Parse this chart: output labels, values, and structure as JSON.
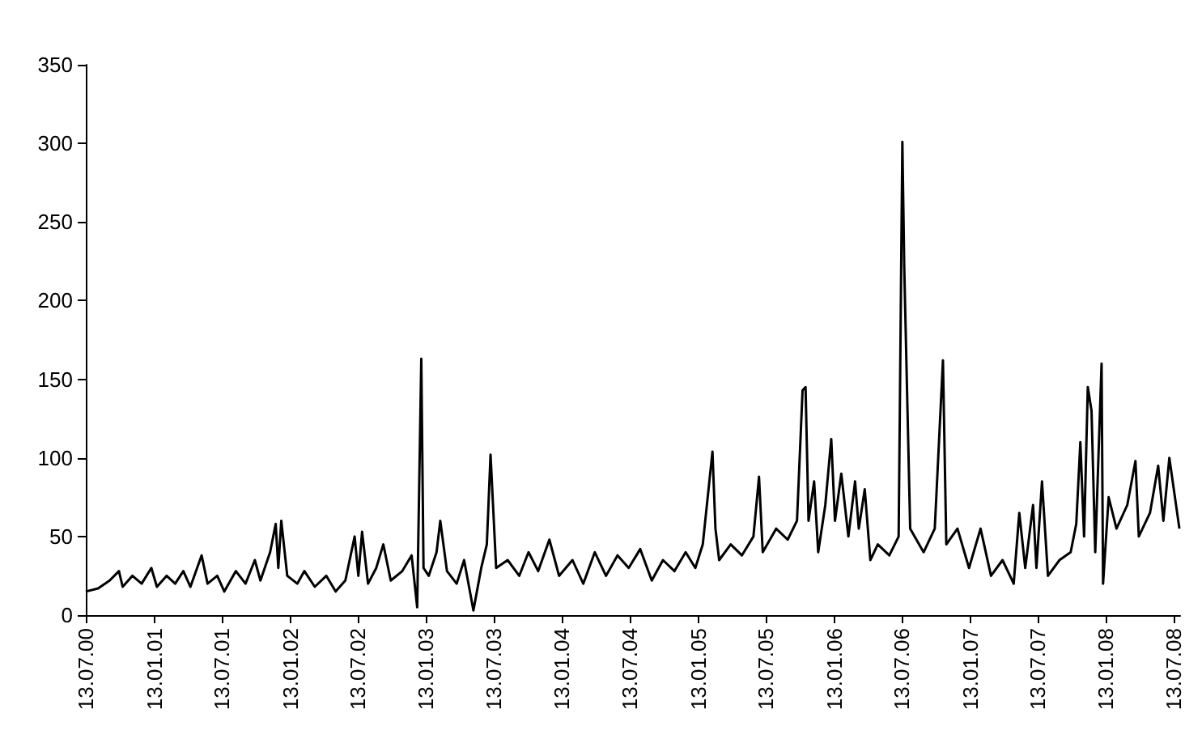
{
  "chart_data": {
    "type": "line",
    "color": "#000000",
    "xlim": [
      "2000-07-13",
      "2008-07-30"
    ],
    "xticks": [
      {
        "value": "2000-07-13",
        "label": "13.07.00"
      },
      {
        "value": "2001-01-13",
        "label": "13.01.01"
      },
      {
        "value": "2001-07-13",
        "label": "13.07.01"
      },
      {
        "value": "2002-01-13",
        "label": "13.01.02"
      },
      {
        "value": "2002-07-13",
        "label": "13.07.02"
      },
      {
        "value": "2003-01-13",
        "label": "13.01.03"
      },
      {
        "value": "2003-07-13",
        "label": "13.07.03"
      },
      {
        "value": "2004-01-13",
        "label": "13.01.04"
      },
      {
        "value": "2004-07-13",
        "label": "13.07.04"
      },
      {
        "value": "2005-01-13",
        "label": "13.01.05"
      },
      {
        "value": "2005-07-13",
        "label": "13.07.05"
      },
      {
        "value": "2006-01-13",
        "label": "13.01.06"
      },
      {
        "value": "2006-07-13",
        "label": "13.07.06"
      },
      {
        "value": "2007-01-13",
        "label": "13.01.07"
      },
      {
        "value": "2007-07-13",
        "label": "13.07.07"
      },
      {
        "value": "2008-01-13",
        "label": "13.01.08"
      },
      {
        "value": "2008-07-13",
        "label": "13.07.08"
      }
    ],
    "ylim": [
      0,
      350
    ],
    "yticks": [
      0,
      50,
      100,
      150,
      200,
      250,
      300,
      350
    ],
    "grid": false,
    "x": [
      "2000-07-13",
      "2000-08-15",
      "2000-09-15",
      "2000-10-10",
      "2000-10-20",
      "2000-11-15",
      "2000-12-10",
      "2001-01-05",
      "2001-01-20",
      "2001-02-15",
      "2001-03-10",
      "2001-04-01",
      "2001-04-20",
      "2001-05-20",
      "2001-06-05",
      "2001-07-01",
      "2001-07-20",
      "2001-08-20",
      "2001-09-15",
      "2001-10-10",
      "2001-10-25",
      "2001-11-20",
      "2001-12-05",
      "2001-12-12",
      "2001-12-20",
      "2002-01-05",
      "2002-02-01",
      "2002-02-20",
      "2002-03-20",
      "2002-04-20",
      "2002-05-15",
      "2002-06-10",
      "2002-07-05",
      "2002-07-15",
      "2002-07-25",
      "2002-08-10",
      "2002-09-01",
      "2002-09-20",
      "2002-10-10",
      "2002-11-10",
      "2002-12-05",
      "2002-12-20",
      "2002-12-31",
      "2003-01-06",
      "2003-01-20",
      "2003-02-10",
      "2003-02-20",
      "2003-03-10",
      "2003-04-05",
      "2003-04-25",
      "2003-05-20",
      "2003-06-10",
      "2003-06-25",
      "2003-07-05",
      "2003-07-10",
      "2003-07-20",
      "2003-08-20",
      "2003-09-20",
      "2003-10-15",
      "2003-11-10",
      "2003-12-10",
      "2004-01-05",
      "2004-02-10",
      "2004-03-10",
      "2004-04-10",
      "2004-05-10",
      "2004-06-10",
      "2004-07-10",
      "2004-08-10",
      "2004-09-10",
      "2004-10-10",
      "2004-11-10",
      "2004-12-10",
      "2005-01-05",
      "2005-01-25",
      "2005-02-20",
      "2005-02-28",
      "2005-03-10",
      "2005-04-10",
      "2005-05-10",
      "2005-06-10",
      "2005-06-25",
      "2005-07-05",
      "2005-08-10",
      "2005-09-10",
      "2005-10-05",
      "2005-10-20",
      "2005-10-28",
      "2005-11-05",
      "2005-11-20",
      "2005-12-01",
      "2005-12-20",
      "2006-01-05",
      "2006-01-15",
      "2006-02-01",
      "2006-02-20",
      "2006-03-10",
      "2006-03-20",
      "2006-04-05",
      "2006-04-20",
      "2006-05-10",
      "2006-06-10",
      "2006-07-05",
      "2006-07-15",
      "2006-07-20",
      "2006-08-05",
      "2006-09-10",
      "2006-10-10",
      "2006-11-01",
      "2006-11-10",
      "2006-12-10",
      "2007-01-10",
      "2007-02-10",
      "2007-03-10",
      "2007-04-10",
      "2007-05-10",
      "2007-05-25",
      "2007-06-10",
      "2007-07-01",
      "2007-07-10",
      "2007-07-25",
      "2007-08-10",
      "2007-09-10",
      "2007-10-10",
      "2007-10-25",
      "2007-11-05",
      "2007-11-15",
      "2007-11-25",
      "2007-12-05",
      "2007-12-15",
      "2008-01-01",
      "2008-01-05",
      "2008-01-20",
      "2008-02-10",
      "2008-03-10",
      "2008-04-01",
      "2008-04-10",
      "2008-05-10",
      "2008-06-01",
      "2008-06-15",
      "2008-07-01",
      "2008-07-28"
    ],
    "values": [
      15,
      17,
      22,
      28,
      18,
      25,
      20,
      30,
      18,
      25,
      20,
      28,
      18,
      38,
      20,
      25,
      15,
      28,
      20,
      35,
      22,
      40,
      58,
      30,
      60,
      25,
      20,
      28,
      18,
      25,
      15,
      22,
      50,
      25,
      53,
      20,
      30,
      45,
      22,
      28,
      38,
      5,
      163,
      30,
      25,
      40,
      60,
      28,
      20,
      35,
      3,
      30,
      45,
      102,
      78,
      30,
      35,
      25,
      40,
      28,
      48,
      25,
      35,
      20,
      40,
      25,
      38,
      30,
      42,
      22,
      35,
      28,
      40,
      30,
      45,
      104,
      55,
      35,
      45,
      38,
      50,
      88,
      40,
      55,
      48,
      60,
      143,
      145,
      60,
      85,
      40,
      70,
      112,
      60,
      90,
      50,
      85,
      55,
      80,
      35,
      45,
      38,
      50,
      301,
      222,
      55,
      40,
      55,
      162,
      45,
      55,
      30,
      55,
      25,
      35,
      20,
      65,
      30,
      70,
      30,
      85,
      25,
      35,
      40,
      58,
      110,
      50,
      145,
      130,
      40,
      160,
      20,
      75,
      55,
      70,
      98,
      50,
      65,
      95,
      60,
      100,
      55
    ]
  }
}
